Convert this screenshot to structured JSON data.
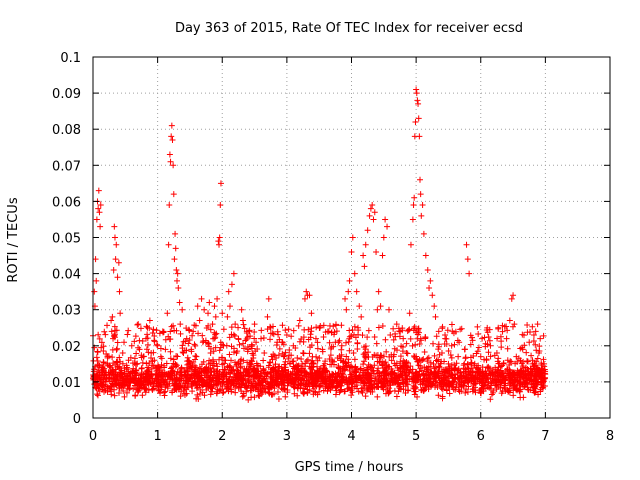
{
  "chart_data": {
    "type": "scatter",
    "title": "Day 363 of 2015, Rate Of TEC Index for receiver ecsd",
    "xlabel": "GPS time / hours",
    "ylabel": "ROTI / TECUs",
    "xlim": [
      0,
      8
    ],
    "ylim": [
      0,
      0.1
    ],
    "xticks": [
      "0",
      "1",
      "2",
      "3",
      "4",
      "5",
      "6",
      "7",
      "8"
    ],
    "yticks": [
      "0",
      "0.01",
      "0.02",
      "0.03",
      "0.04",
      "0.05",
      "0.06",
      "0.07",
      "0.08",
      "0.09",
      "0.1"
    ],
    "grid": true,
    "marker": "+",
    "color": "#ff0000",
    "series": [
      {
        "name": "ROTI",
        "points": [
          [
            0.0,
            0.011
          ],
          [
            0.02,
            0.035
          ],
          [
            0.03,
            0.031
          ],
          [
            0.04,
            0.044
          ],
          [
            0.05,
            0.038
          ],
          [
            0.06,
            0.055
          ],
          [
            0.07,
            0.06
          ],
          [
            0.08,
            0.058
          ],
          [
            0.09,
            0.063
          ],
          [
            0.1,
            0.057
          ],
          [
            0.11,
            0.053
          ],
          [
            0.12,
            0.059
          ],
          [
            0.14,
            0.013
          ],
          [
            0.16,
            0.009
          ],
          [
            0.18,
            0.012
          ],
          [
            0.2,
            0.01
          ],
          [
            0.22,
            0.015
          ],
          [
            0.25,
            0.012
          ],
          [
            0.28,
            0.027
          ],
          [
            0.29,
            0.024
          ],
          [
            0.3,
            0.028
          ],
          [
            0.31,
            0.022
          ],
          [
            0.32,
            0.041
          ],
          [
            0.33,
            0.053
          ],
          [
            0.34,
            0.05
          ],
          [
            0.35,
            0.044
          ],
          [
            0.36,
            0.048
          ],
          [
            0.38,
            0.039
          ],
          [
            0.4,
            0.043
          ],
          [
            0.41,
            0.035
          ],
          [
            0.42,
            0.029
          ],
          [
            0.44,
            0.012
          ],
          [
            0.46,
            0.018
          ],
          [
            0.48,
            0.021
          ],
          [
            0.5,
            0.01
          ],
          [
            0.52,
            0.014
          ],
          [
            0.55,
            0.016
          ],
          [
            0.58,
            0.011
          ],
          [
            0.6,
            0.02
          ],
          [
            0.62,
            0.013
          ],
          [
            0.65,
            0.009
          ],
          [
            0.68,
            0.015
          ],
          [
            0.7,
            0.026
          ],
          [
            0.72,
            0.019
          ],
          [
            0.75,
            0.012
          ],
          [
            0.78,
            0.017
          ],
          [
            0.8,
            0.01
          ],
          [
            0.82,
            0.022
          ],
          [
            0.85,
            0.014
          ],
          [
            0.88,
            0.027
          ],
          [
            0.9,
            0.018
          ],
          [
            0.92,
            0.011
          ],
          [
            0.95,
            0.016
          ],
          [
            0.98,
            0.013
          ],
          [
            1.0,
            0.02
          ],
          [
            1.02,
            0.012
          ],
          [
            1.05,
            0.017
          ],
          [
            1.08,
            0.024
          ],
          [
            1.1,
            0.014
          ],
          [
            1.12,
            0.019
          ],
          [
            1.15,
            0.029
          ],
          [
            1.17,
            0.048
          ],
          [
            1.18,
            0.059
          ],
          [
            1.19,
            0.073
          ],
          [
            1.2,
            0.071
          ],
          [
            1.21,
            0.078
          ],
          [
            1.22,
            0.081
          ],
          [
            1.23,
            0.077
          ],
          [
            1.24,
            0.07
          ],
          [
            1.25,
            0.062
          ],
          [
            1.26,
            0.044
          ],
          [
            1.27,
            0.051
          ],
          [
            1.28,
            0.047
          ],
          [
            1.29,
            0.041
          ],
          [
            1.3,
            0.038
          ],
          [
            1.31,
            0.04
          ],
          [
            1.32,
            0.036
          ],
          [
            1.34,
            0.032
          ],
          [
            1.35,
            0.026
          ],
          [
            1.38,
            0.03
          ],
          [
            1.4,
            0.018
          ],
          [
            1.42,
            0.012
          ],
          [
            1.45,
            0.022
          ],
          [
            1.48,
            0.015
          ],
          [
            1.5,
            0.011
          ],
          [
            1.52,
            0.019
          ],
          [
            1.55,
            0.024
          ],
          [
            1.58,
            0.013
          ],
          [
            1.6,
            0.017
          ],
          [
            1.62,
            0.031
          ],
          [
            1.65,
            0.027
          ],
          [
            1.68,
            0.033
          ],
          [
            1.7,
            0.021
          ],
          [
            1.72,
            0.03
          ],
          [
            1.75,
            0.014
          ],
          [
            1.78,
            0.029
          ],
          [
            1.8,
            0.032
          ],
          [
            1.82,
            0.018
          ],
          [
            1.85,
            0.026
          ],
          [
            1.88,
            0.031
          ],
          [
            1.9,
            0.028
          ],
          [
            1.92,
            0.033
          ],
          [
            1.94,
            0.049
          ],
          [
            1.95,
            0.048
          ],
          [
            1.96,
            0.05
          ],
          [
            1.97,
            0.059
          ],
          [
            1.98,
            0.065
          ],
          [
            2.0,
            0.029
          ],
          [
            2.02,
            0.02
          ],
          [
            2.05,
            0.016
          ],
          [
            2.08,
            0.028
          ],
          [
            2.1,
            0.035
          ],
          [
            2.12,
            0.031
          ],
          [
            2.15,
            0.037
          ],
          [
            2.18,
            0.04
          ],
          [
            2.2,
            0.026
          ],
          [
            2.22,
            0.018
          ],
          [
            2.25,
            0.022
          ],
          [
            2.28,
            0.015
          ],
          [
            2.3,
            0.03
          ],
          [
            2.32,
            0.027
          ],
          [
            2.35,
            0.011
          ],
          [
            2.38,
            0.024
          ],
          [
            2.4,
            0.019
          ],
          [
            2.45,
            0.016
          ],
          [
            2.5,
            0.026
          ],
          [
            2.55,
            0.013
          ],
          [
            2.6,
            0.022
          ],
          [
            2.65,
            0.018
          ],
          [
            2.7,
            0.028
          ],
          [
            2.72,
            0.033
          ],
          [
            2.75,
            0.025
          ],
          [
            2.8,
            0.014
          ],
          [
            2.85,
            0.021
          ],
          [
            2.9,
            0.012
          ],
          [
            2.95,
            0.017
          ],
          [
            3.0,
            0.023
          ],
          [
            3.05,
            0.015
          ],
          [
            3.1,
            0.02
          ],
          [
            3.15,
            0.012
          ],
          [
            3.2,
            0.027
          ],
          [
            3.25,
            0.018
          ],
          [
            3.28,
            0.033
          ],
          [
            3.3,
            0.035
          ],
          [
            3.32,
            0.034
          ],
          [
            3.35,
            0.034
          ],
          [
            3.38,
            0.029
          ],
          [
            3.4,
            0.015
          ],
          [
            3.45,
            0.022
          ],
          [
            3.5,
            0.013
          ],
          [
            3.55,
            0.019
          ],
          [
            3.6,
            0.011
          ],
          [
            3.65,
            0.024
          ],
          [
            3.7,
            0.016
          ],
          [
            3.75,
            0.021
          ],
          [
            3.8,
            0.014
          ],
          [
            3.85,
            0.02
          ],
          [
            3.9,
            0.033
          ],
          [
            3.92,
            0.03
          ],
          [
            3.95,
            0.035
          ],
          [
            3.97,
            0.038
          ],
          [
            4.0,
            0.046
          ],
          [
            4.02,
            0.05
          ],
          [
            4.05,
            0.04
          ],
          [
            4.08,
            0.035
          ],
          [
            4.1,
            0.025
          ],
          [
            4.12,
            0.031
          ],
          [
            4.15,
            0.028
          ],
          [
            4.18,
            0.045
          ],
          [
            4.2,
            0.042
          ],
          [
            4.22,
            0.048
          ],
          [
            4.25,
            0.052
          ],
          [
            4.28,
            0.056
          ],
          [
            4.3,
            0.058
          ],
          [
            4.32,
            0.059
          ],
          [
            4.34,
            0.055
          ],
          [
            4.36,
            0.057
          ],
          [
            4.38,
            0.046
          ],
          [
            4.4,
            0.03
          ],
          [
            4.42,
            0.035
          ],
          [
            4.45,
            0.031
          ],
          [
            4.48,
            0.045
          ],
          [
            4.5,
            0.05
          ],
          [
            4.52,
            0.055
          ],
          [
            4.55,
            0.053
          ],
          [
            4.58,
            0.03
          ],
          [
            4.6,
            0.023
          ],
          [
            4.65,
            0.017
          ],
          [
            4.7,
            0.026
          ],
          [
            4.75,
            0.014
          ],
          [
            4.8,
            0.022
          ],
          [
            4.85,
            0.018
          ],
          [
            4.9,
            0.029
          ],
          [
            4.92,
            0.048
          ],
          [
            4.95,
            0.055
          ],
          [
            4.96,
            0.059
          ],
          [
            4.97,
            0.061
          ],
          [
            4.98,
            0.078
          ],
          [
            4.99,
            0.082
          ],
          [
            5.0,
            0.091
          ],
          [
            5.01,
            0.09
          ],
          [
            5.02,
            0.088
          ],
          [
            5.03,
            0.087
          ],
          [
            5.04,
            0.083
          ],
          [
            5.05,
            0.078
          ],
          [
            5.06,
            0.066
          ],
          [
            5.07,
            0.062
          ],
          [
            5.08,
            0.056
          ],
          [
            5.1,
            0.059
          ],
          [
            5.12,
            0.051
          ],
          [
            5.15,
            0.045
          ],
          [
            5.18,
            0.041
          ],
          [
            5.2,
            0.036
          ],
          [
            5.22,
            0.038
          ],
          [
            5.25,
            0.034
          ],
          [
            5.28,
            0.031
          ],
          [
            5.3,
            0.028
          ],
          [
            5.35,
            0.024
          ],
          [
            5.4,
            0.018
          ],
          [
            5.45,
            0.022
          ],
          [
            5.5,
            0.015
          ],
          [
            5.55,
            0.02
          ],
          [
            5.6,
            0.012
          ],
          [
            5.65,
            0.017
          ],
          [
            5.7,
            0.011
          ],
          [
            5.75,
            0.019
          ],
          [
            5.78,
            0.048
          ],
          [
            5.8,
            0.044
          ],
          [
            5.82,
            0.04
          ],
          [
            5.85,
            0.015
          ],
          [
            5.9,
            0.01
          ],
          [
            5.95,
            0.013
          ],
          [
            6.0,
            0.017
          ],
          [
            6.05,
            0.009
          ],
          [
            6.1,
            0.014
          ],
          [
            6.15,
            0.02
          ],
          [
            6.2,
            0.012
          ],
          [
            6.25,
            0.018
          ],
          [
            6.3,
            0.01
          ],
          [
            6.35,
            0.015
          ],
          [
            6.4,
            0.022
          ],
          [
            6.45,
            0.027
          ],
          [
            6.48,
            0.033
          ],
          [
            6.5,
            0.034
          ],
          [
            6.52,
            0.026
          ],
          [
            6.55,
            0.017
          ],
          [
            6.6,
            0.012
          ],
          [
            6.65,
            0.019
          ],
          [
            6.7,
            0.014
          ],
          [
            6.75,
            0.021
          ],
          [
            6.8,
            0.016
          ],
          [
            6.85,
            0.024
          ],
          [
            6.88,
            0.026
          ],
          [
            6.9,
            0.018
          ],
          [
            6.92,
            0.022
          ],
          [
            6.95,
            0.011
          ],
          [
            6.98,
            0.015
          ]
        ],
        "band": {
          "x_range": [
            0,
            7
          ],
          "y_center": 0.011,
          "y_spread": 0.004,
          "n": 2500,
          "sparse_y_range": [
            0.015,
            0.026
          ],
          "sparse_n": 500
        }
      }
    ]
  }
}
